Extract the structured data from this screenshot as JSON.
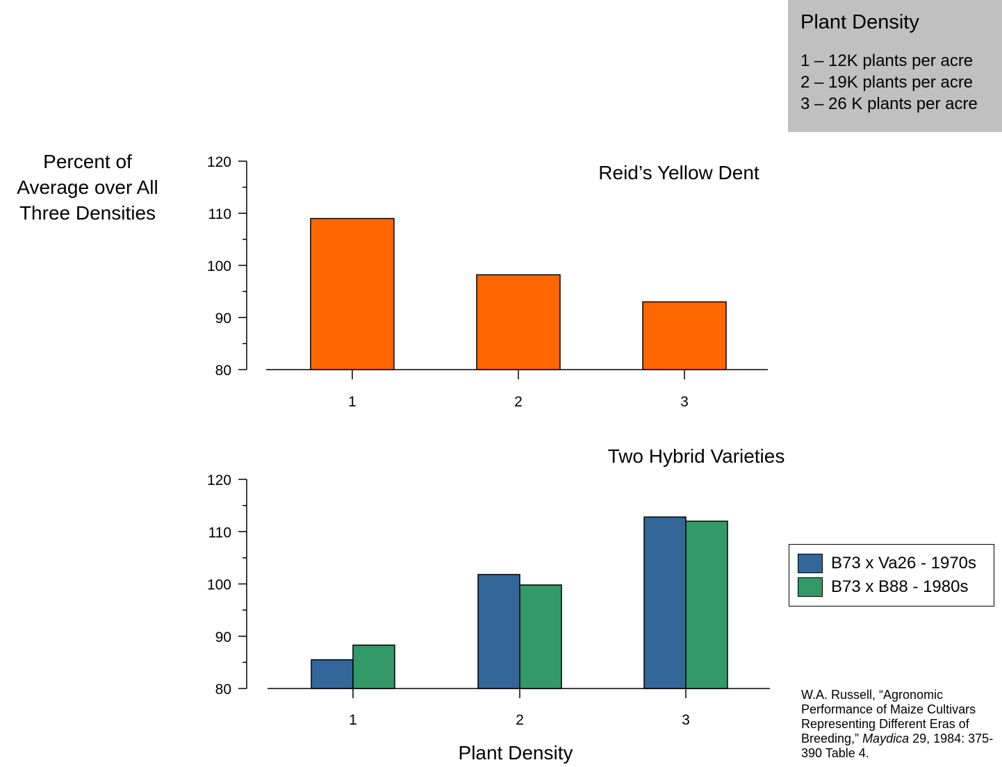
{
  "density_legend": {
    "title": "Plant Density",
    "items": [
      "1 – 12K plants per acre",
      "2 – 19K plants per acre",
      "3 – 26 K plants per acre"
    ]
  },
  "ylabel_lines": [
    "Percent of",
    "Average over All",
    "Three Densities"
  ],
  "xlabel": "Plant Density",
  "citation": {
    "pre": "W.A. Russell, “Agronomic Performance of Maize Cultivars Representing Different Eras of Breeding,” ",
    "journal": "Maydica",
    "post": " 29, 1984: 375-390 Table 4."
  },
  "series_legend": [
    {
      "label": "B73 x Va26 - 1970s",
      "color": "#336699"
    },
    {
      "label": "B73 x B88 - 1980s",
      "color": "#339966"
    }
  ],
  "chart_data": [
    {
      "type": "bar",
      "title": "Reid’s Yellow Dent",
      "categories": [
        "1",
        "2",
        "3"
      ],
      "series": [
        {
          "values": [
            109,
            98.2,
            93
          ],
          "color": "#ff6600"
        }
      ],
      "ylim": [
        80,
        120
      ],
      "yticks": [
        80,
        90,
        100,
        110,
        120
      ],
      "xlabel": "",
      "ylabel": "Percent of Average over All Three Densities",
      "grid": false
    },
    {
      "type": "bar",
      "title": "Two Hybrid Varieties",
      "categories": [
        "1",
        "2",
        "3"
      ],
      "series": [
        {
          "name": "B73 x Va26 - 1970s",
          "values": [
            85.5,
            101.8,
            112.8
          ],
          "color": "#336699"
        },
        {
          "name": "B73 x B88 - 1980s",
          "values": [
            88.3,
            99.8,
            112
          ],
          "color": "#339966"
        }
      ],
      "ylim": [
        80,
        120
      ],
      "yticks": [
        80,
        90,
        100,
        110,
        120
      ],
      "xlabel": "Plant Density",
      "ylabel": "Percent of Average over All Three Densities",
      "legend": "right",
      "grid": false
    }
  ]
}
